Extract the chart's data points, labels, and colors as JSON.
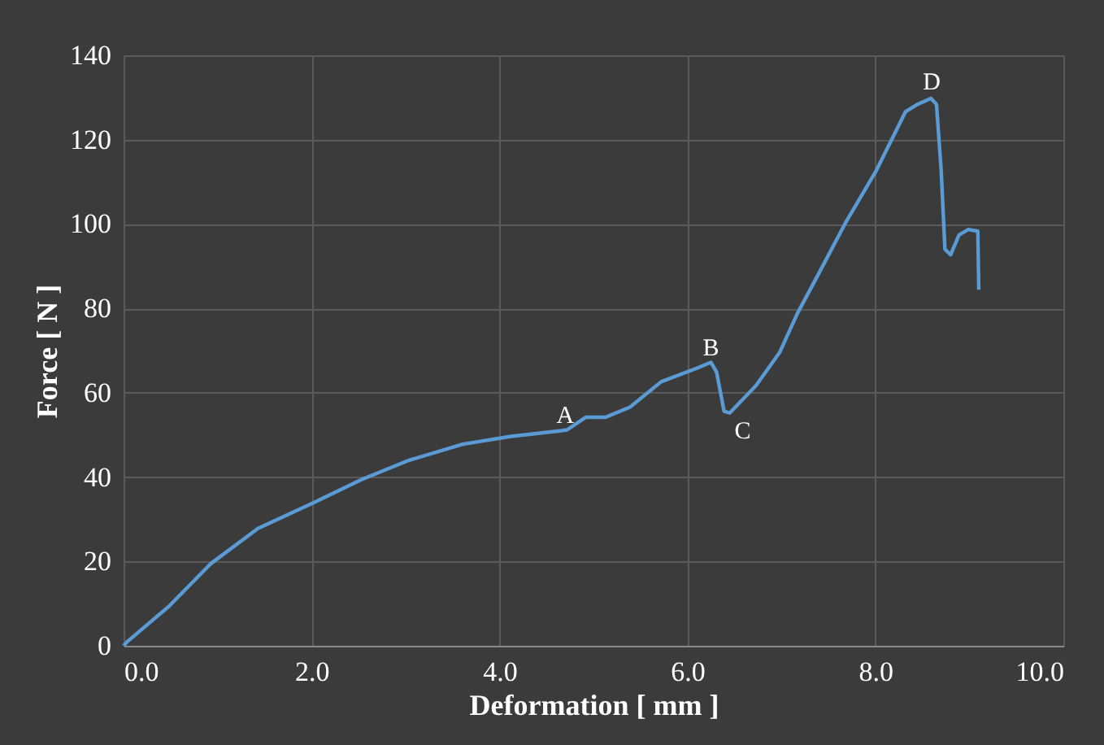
{
  "chart_data": {
    "type": "line",
    "xlabel": "Deformation [ mm ]",
    "ylabel": "Force [ N ]",
    "x": [
      0,
      0.04,
      0.48,
      0.93,
      1.43,
      2.01,
      2.53,
      3.04,
      3.61,
      4.11,
      4.66,
      4.72,
      4.92,
      5.13,
      5.39,
      5.72,
      6.1,
      6.25,
      6.31,
      6.39,
      6.45,
      6.73,
      6.98,
      7.17,
      7.36,
      7.69,
      8.01,
      8.32,
      8.45,
      8.59,
      8.65,
      8.7,
      8.74,
      8.8,
      8.89,
      8.99,
      9.09,
      9.1
    ],
    "series": [
      {
        "color": "#5b9bd5",
        "values": [
          0,
          1,
          9.3,
          19.5,
          27.8,
          33.8,
          39.4,
          44,
          47.8,
          49.6,
          51,
          51.2,
          54.2,
          54.2,
          56.6,
          62.6,
          65.8,
          67.2,
          64.9,
          55.6,
          55.2,
          61.7,
          69.5,
          78.8,
          86.7,
          100.6,
          112.7,
          126.6,
          128.4,
          129.8,
          128.4,
          112.7,
          94,
          92.7,
          97.4,
          98.7,
          98.3,
          84.4
        ]
      }
    ],
    "xlim": [
      0,
      10
    ],
    "xticks": [
      {
        "value": 0,
        "label": "0.0"
      },
      {
        "value": 2,
        "label": "2.0"
      },
      {
        "value": 4,
        "label": "4.0"
      },
      {
        "value": 6,
        "label": "6.0"
      },
      {
        "value": 8,
        "label": "8.0"
      },
      {
        "value": 10,
        "label": "10.0"
      }
    ],
    "ylim": [
      0,
      140
    ],
    "yticks": [
      0,
      20,
      40,
      60,
      80,
      100,
      120,
      140
    ],
    "grid": true,
    "line_style": "solid",
    "marker": "none",
    "annotations": [
      {
        "text": "A",
        "x": 4.7,
        "y": 51
      },
      {
        "text": "B",
        "x": 6.25,
        "y": 67
      },
      {
        "text": "C",
        "x": 6.45,
        "y": 55
      },
      {
        "text": "D",
        "x": 8.6,
        "y": 130
      }
    ]
  }
}
